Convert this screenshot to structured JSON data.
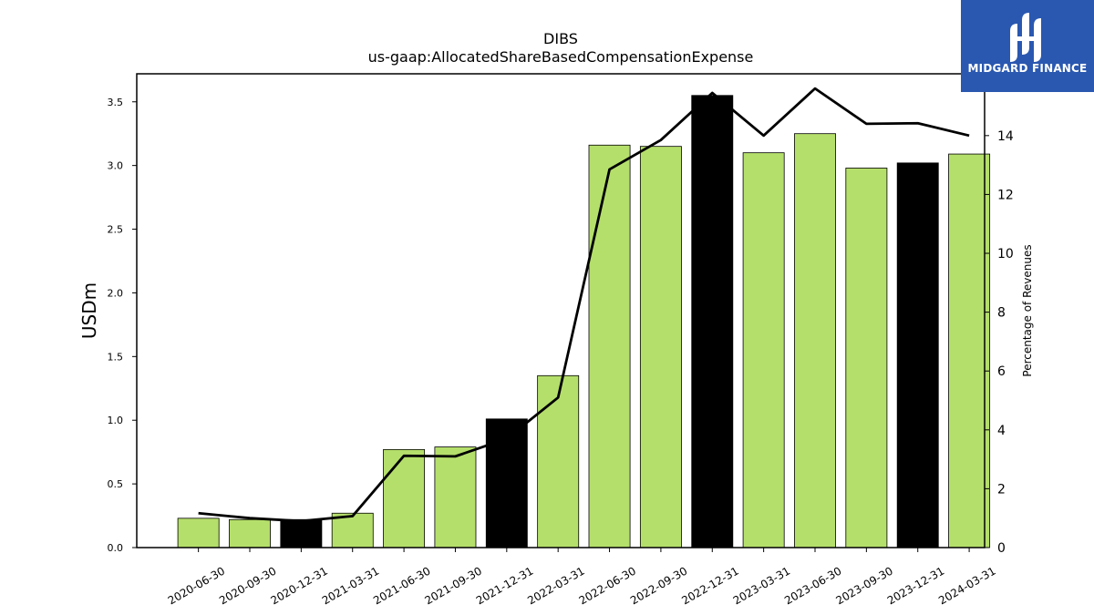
{
  "brand": {
    "name": "MIDGARD FINANCE",
    "bg_color": "#2a58b0"
  },
  "chart_data": {
    "type": "bar",
    "title": "DIBS",
    "subtitle": "us-gaap:AllocatedShareBasedCompensationExpense",
    "ylabel": "USDm",
    "y2label": "Percentage of Revenues",
    "ylim": [
      0,
      3.72
    ],
    "y2lim": [
      0,
      16.1
    ],
    "yticks": [
      0.0,
      0.5,
      1.0,
      1.5,
      2.0,
      2.5,
      3.0,
      3.5
    ],
    "y2ticks": [
      0,
      2,
      4,
      6,
      8,
      10,
      12,
      14
    ],
    "categories": [
      "2020-06-30",
      "2020-09-30",
      "2020-12-31",
      "2021-03-31",
      "2021-06-30",
      "2021-09-30",
      "2021-12-31",
      "2022-03-31",
      "2022-06-30",
      "2022-09-30",
      "2022-12-31",
      "2023-03-31",
      "2023-06-30",
      "2023-09-30",
      "2023-12-31",
      "2024-03-31"
    ],
    "series": [
      {
        "type": "bar",
        "axis": "left",
        "values": [
          0.23,
          0.22,
          0.22,
          0.27,
          0.77,
          0.79,
          1.01,
          1.35,
          3.16,
          3.15,
          3.55,
          3.1,
          3.25,
          2.98,
          3.02,
          3.09
        ],
        "colors": [
          "#b5df6b",
          "#b5df6b",
          "#000000",
          "#b5df6b",
          "#b5df6b",
          "#b5df6b",
          "#000000",
          "#b5df6b",
          "#b5df6b",
          "#b5df6b",
          "#000000",
          "#b5df6b",
          "#b5df6b",
          "#b5df6b",
          "#000000",
          "#b5df6b"
        ]
      },
      {
        "type": "line",
        "axis": "right",
        "color": "#000000",
        "values": [
          1.17,
          1.0,
          0.9,
          1.07,
          3.12,
          3.1,
          3.7,
          5.1,
          12.85,
          13.85,
          15.45,
          14.0,
          15.6,
          14.4,
          14.42,
          14.0
        ]
      }
    ],
    "grid": false,
    "legend": "none"
  }
}
